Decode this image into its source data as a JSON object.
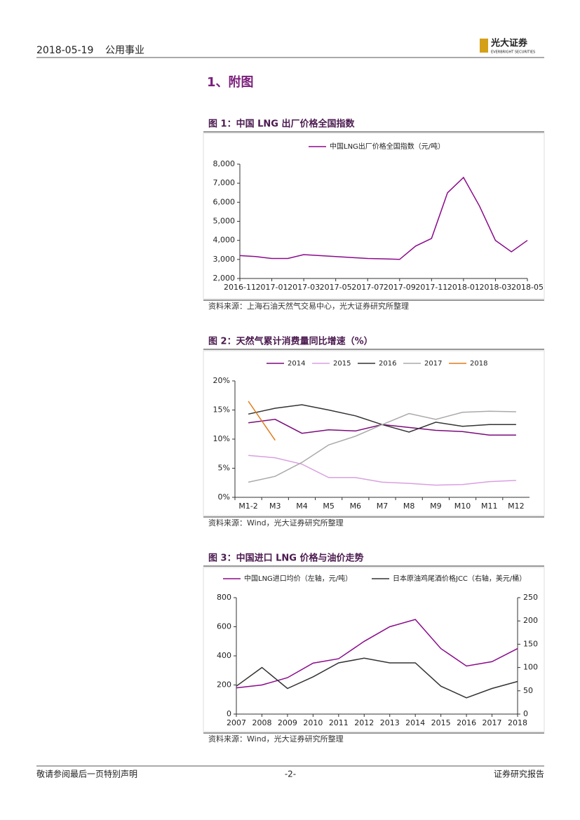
{
  "header": {
    "date": "2018-05-19",
    "sector": "公用事业",
    "logo": "光大证券",
    "logo_en": "EVERBRIGHT SECURITIES"
  },
  "section_title": "1、附图",
  "footer": {
    "left": "敬请参阅最后一页特别声明",
    "page": "-2-",
    "right": "证券研究报告"
  },
  "chart_data": [
    {
      "type": "line",
      "title": "图 1：中国 LNG 出厂价格全国指数",
      "source": "资料来源：上海石油天然气交易中心，光大证券研究所整理",
      "x": [
        "2016-11",
        "2016-12",
        "2017-01",
        "2017-02",
        "2017-03",
        "2017-04",
        "2017-05",
        "2017-06",
        "2017-07",
        "2017-08",
        "2017-09",
        "2017-10",
        "2017-11",
        "2017-12",
        "2018-01",
        "2018-02",
        "2018-03",
        "2018-04",
        "2018-05"
      ],
      "xticks": [
        "2016-11",
        "2017-01",
        "2017-03",
        "2017-05",
        "2017-07",
        "2017-09",
        "2017-11",
        "2018-01",
        "2018-03",
        "2018-05"
      ],
      "series": [
        {
          "name": "中国LNG出厂价格全国指数（元/吨）",
          "color": "#8b0a8b",
          "values": [
            3200,
            3150,
            3050,
            3050,
            3250,
            3200,
            3150,
            3100,
            3050,
            3030,
            3000,
            3700,
            4100,
            6500,
            7300,
            5800,
            4000,
            3400,
            4000
          ]
        }
      ],
      "ylim": [
        2000,
        8000
      ],
      "yticks": [
        {
          "value": 2000,
          "label": "2,000"
        },
        {
          "value": 3000,
          "label": "3,000"
        },
        {
          "value": 4000,
          "label": "4,000"
        },
        {
          "value": 5000,
          "label": "5,000"
        },
        {
          "value": 6000,
          "label": "6,000"
        },
        {
          "value": 7000,
          "label": "7,000"
        },
        {
          "value": 8000,
          "label": "8,000"
        }
      ]
    },
    {
      "type": "line",
      "title": "图 2：天然气累计消费量同比增速（%）",
      "source": "资料来源：Wind，光大证券研究所整理",
      "categories": [
        "M1-2",
        "M3",
        "M4",
        "M5",
        "M6",
        "M7",
        "M8",
        "M9",
        "M10",
        "M11",
        "M12"
      ],
      "series": [
        {
          "name": "2014",
          "color": "#7b0b7b",
          "values": [
            12.8,
            13.4,
            11.0,
            11.6,
            11.4,
            12.5,
            12.0,
            11.5,
            11.3,
            10.7,
            10.7
          ]
        },
        {
          "name": "2015",
          "color": "#d9a0e0",
          "values": [
            7.2,
            6.8,
            5.7,
            3.4,
            3.4,
            2.6,
            2.4,
            2.1,
            2.2,
            2.7,
            2.9
          ]
        },
        {
          "name": "2016",
          "color": "#333333",
          "values": [
            14.3,
            15.3,
            15.9,
            15.0,
            14.0,
            12.5,
            11.2,
            12.9,
            12.2,
            12.5,
            12.5
          ]
        },
        {
          "name": "2017",
          "color": "#aaaaaa",
          "values": [
            2.6,
            3.6,
            6.0,
            9.0,
            10.5,
            12.5,
            14.4,
            13.4,
            14.6,
            14.8,
            14.7
          ]
        },
        {
          "name": "2018",
          "color": "#e07b1a",
          "values": [
            16.5,
            9.8,
            null,
            null,
            null,
            null,
            null,
            null,
            null,
            null,
            null
          ]
        }
      ],
      "ylim": [
        0,
        20
      ],
      "yticks": [
        {
          "value": 0,
          "label": "0%"
        },
        {
          "value": 5,
          "label": "5%"
        },
        {
          "value": 10,
          "label": "10%"
        },
        {
          "value": 15,
          "label": "15%"
        },
        {
          "value": 20,
          "label": "20%"
        }
      ]
    },
    {
      "type": "line",
      "title": "图 3：中国进口 LNG 价格与油价走势",
      "source": "资料来源：Wind，光大证券研究所整理",
      "x": [
        2007,
        2008,
        2009,
        2010,
        2011,
        2012,
        2013,
        2014,
        2015,
        2016,
        2017,
        2018
      ],
      "xlim": [
        2007,
        2018
      ],
      "xticks": [
        2007,
        2008,
        2009,
        2010,
        2011,
        2012,
        2013,
        2014,
        2015,
        2016,
        2017,
        2018
      ],
      "series": [
        {
          "name": "中国LNG进口均价（左轴，元/吨）",
          "color": "#8b0a8b",
          "values": [
            180,
            200,
            250,
            350,
            380,
            500,
            600,
            650,
            450,
            330,
            360,
            450
          ]
        },
        {
          "name": "日本原油鸡尾酒价格JCC（右轴，美元/桶）",
          "color": "#333333",
          "axis": "y2",
          "values": [
            60,
            100,
            55,
            80,
            110,
            120,
            110,
            110,
            60,
            35,
            55,
            70
          ]
        }
      ],
      "ylim": [
        0,
        800
      ],
      "yticks": [
        0,
        200,
        400,
        600,
        800
      ],
      "y2lim": [
        0,
        250
      ],
      "y2ticks": [
        0,
        50,
        100,
        150,
        200,
        250
      ]
    }
  ]
}
